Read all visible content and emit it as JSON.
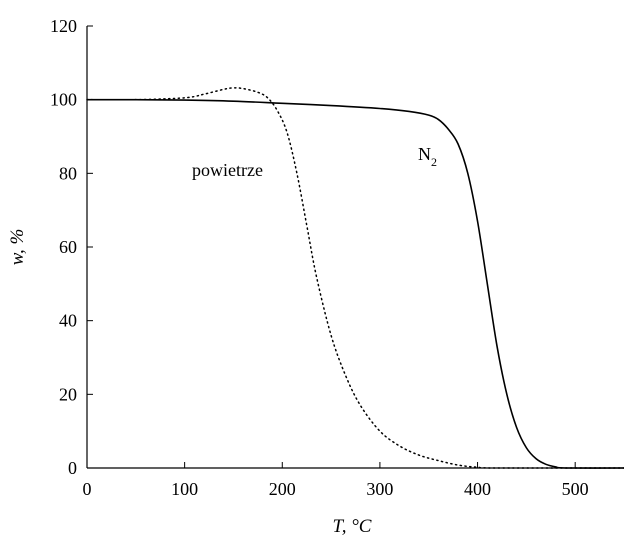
{
  "chart_data": {
    "type": "line",
    "title": "",
    "xlabel": "T, °C",
    "ylabel": "w, %",
    "xlim": [
      0,
      550
    ],
    "ylim": [
      0,
      120
    ],
    "x_ticks": [
      0,
      100,
      200,
      300,
      400,
      500
    ],
    "y_ticks": [
      0,
      20,
      40,
      60,
      80,
      100,
      120
    ],
    "grid": false,
    "legend": "none",
    "series": [
      {
        "name": "N2",
        "label_text": "N",
        "label_subscript": "2",
        "style": "solid",
        "color": "#000000",
        "points": [
          [
            0,
            100
          ],
          [
            50,
            100
          ],
          [
            100,
            99.9
          ],
          [
            150,
            99.6
          ],
          [
            200,
            99.0
          ],
          [
            250,
            98.4
          ],
          [
            300,
            97.6
          ],
          [
            330,
            96.8
          ],
          [
            350,
            95.8
          ],
          [
            360,
            94.6
          ],
          [
            370,
            92.0
          ],
          [
            380,
            88.0
          ],
          [
            390,
            80.0
          ],
          [
            400,
            67.0
          ],
          [
            410,
            50.0
          ],
          [
            420,
            33.0
          ],
          [
            430,
            20.0
          ],
          [
            440,
            11.0
          ],
          [
            450,
            5.5
          ],
          [
            460,
            2.5
          ],
          [
            470,
            1.0
          ],
          [
            480,
            0.3
          ],
          [
            490,
            0
          ],
          [
            550,
            0
          ]
        ]
      },
      {
        "name": "powietrze",
        "label_text": "powietrze",
        "style": "dotted",
        "color": "#000000",
        "points": [
          [
            0,
            100
          ],
          [
            50,
            100
          ],
          [
            100,
            100.5
          ],
          [
            120,
            101.5
          ],
          [
            140,
            102.8
          ],
          [
            150,
            103.2
          ],
          [
            160,
            103.0
          ],
          [
            175,
            102.0
          ],
          [
            185,
            100.5
          ],
          [
            195,
            97.0
          ],
          [
            205,
            91.0
          ],
          [
            215,
            80.0
          ],
          [
            225,
            66.0
          ],
          [
            235,
            52.0
          ],
          [
            250,
            36.0
          ],
          [
            265,
            25.0
          ],
          [
            280,
            17.0
          ],
          [
            300,
            10.0
          ],
          [
            320,
            6.0
          ],
          [
            340,
            3.5
          ],
          [
            360,
            2.0
          ],
          [
            380,
            0.8
          ],
          [
            400,
            0.2
          ],
          [
            420,
            0
          ],
          [
            550,
            0
          ]
        ]
      }
    ]
  }
}
